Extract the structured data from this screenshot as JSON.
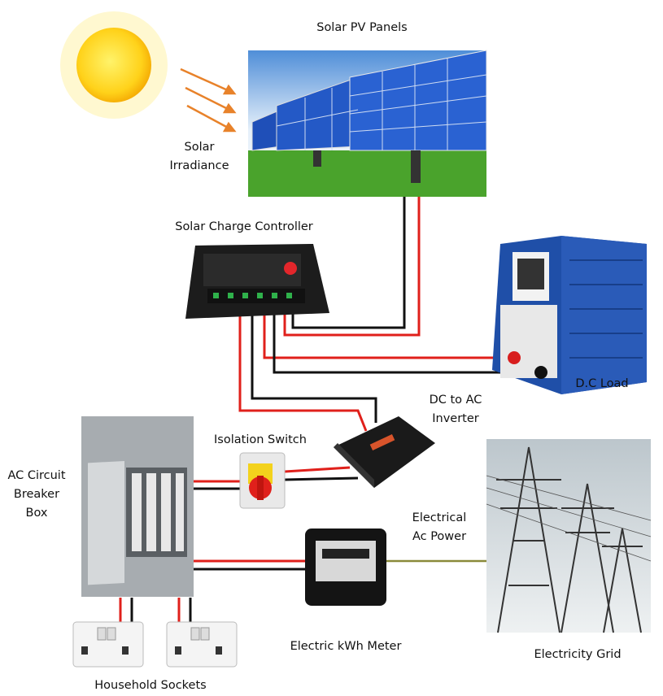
{
  "title": "Solar PV Panels",
  "irradiance": {
    "lines": [
      "Solar",
      "Irradiance"
    ]
  },
  "controller": {
    "label": "Solar Charge Controller"
  },
  "dc_load": {
    "label": "D.C Load"
  },
  "inverter": {
    "lines": [
      "DC to AC",
      "Inverter"
    ]
  },
  "switch": {
    "label": "Isolation Switch"
  },
  "breaker": {
    "lines": [
      "AC Circuit",
      "Breaker",
      "Box"
    ]
  },
  "ac_power": {
    "lines": [
      "Electrical",
      "Ac Power"
    ]
  },
  "meter": {
    "label": "Electric kWh Meter"
  },
  "grid": {
    "label": "Electricity Grid"
  },
  "sockets": {
    "label": "Household Sockets"
  }
}
